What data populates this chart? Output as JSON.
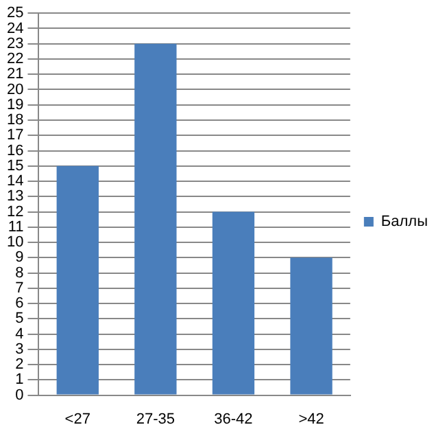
{
  "chart_data": {
    "type": "bar",
    "categories": [
      "<27",
      "27-35",
      "36-42",
      ">42"
    ],
    "series": [
      {
        "name": "Баллы",
        "color": "#4a7ebb",
        "values": [
          15,
          23,
          12,
          9
        ]
      }
    ],
    "ylim": [
      0,
      25
    ],
    "yticks": [
      0,
      1,
      2,
      3,
      4,
      5,
      6,
      7,
      8,
      9,
      10,
      11,
      12,
      13,
      14,
      15,
      16,
      17,
      18,
      19,
      20,
      21,
      22,
      23,
      24,
      25
    ],
    "grid": "y",
    "legend": "right"
  }
}
